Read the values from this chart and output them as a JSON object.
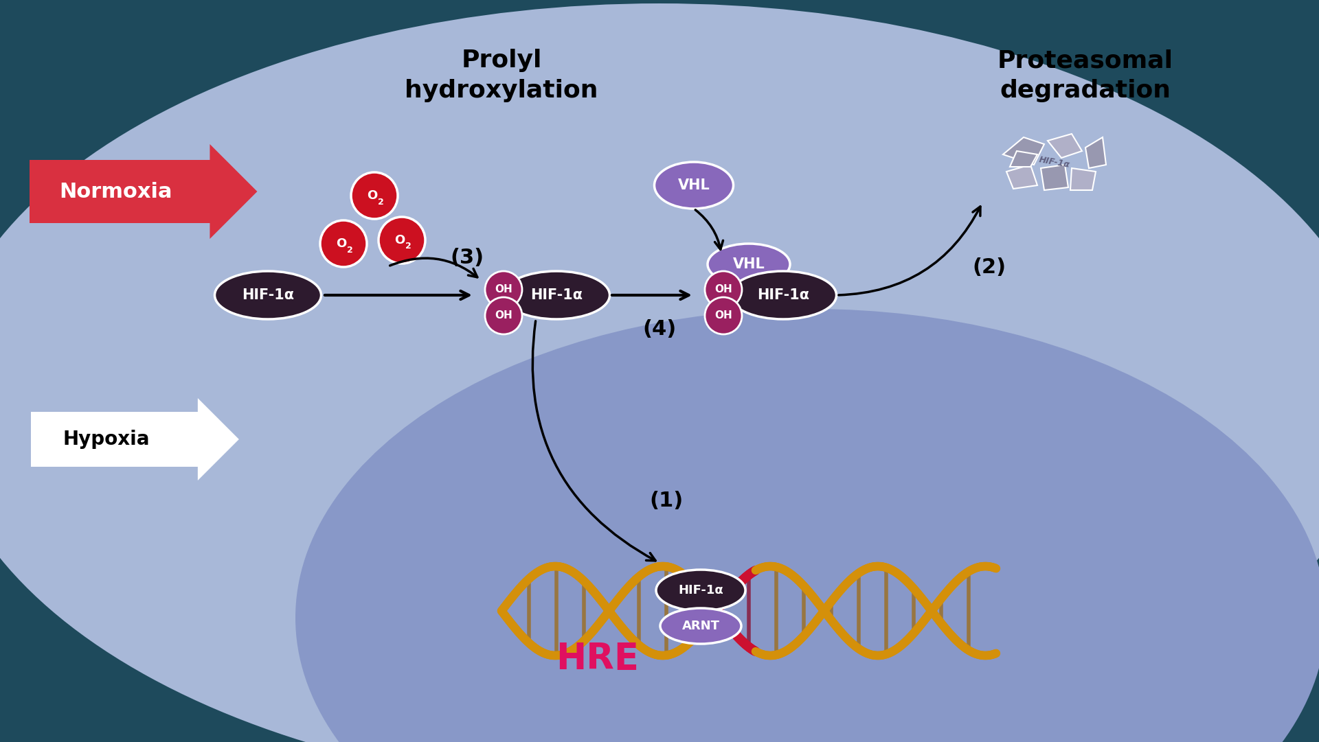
{
  "bg_color": "#1e4a5c",
  "cell_bg": "#a8b8d8",
  "nucleus_color": "#8898c8",
  "normoxia_arrow_color": "#d93040",
  "normoxia_text": "Normoxia",
  "hypoxia_text": "Hypoxia",
  "hif1a_color": "#2d1a2e",
  "oh_color": "#9a2060",
  "vhl_color": "#8868bb",
  "o2_color": "#cc1020",
  "label1": "(1)",
  "label2": "(2)",
  "label3": "(3)",
  "label4": "(4)",
  "title_prolyl": "Prolyl\nhydroxylation",
  "title_proteasomal": "Proteasomal\ndegradation",
  "hre_color": "#e01060",
  "arnt_color": "#8868bb",
  "dna_color": "#d4900a",
  "dna_red_color": "#cc1030"
}
